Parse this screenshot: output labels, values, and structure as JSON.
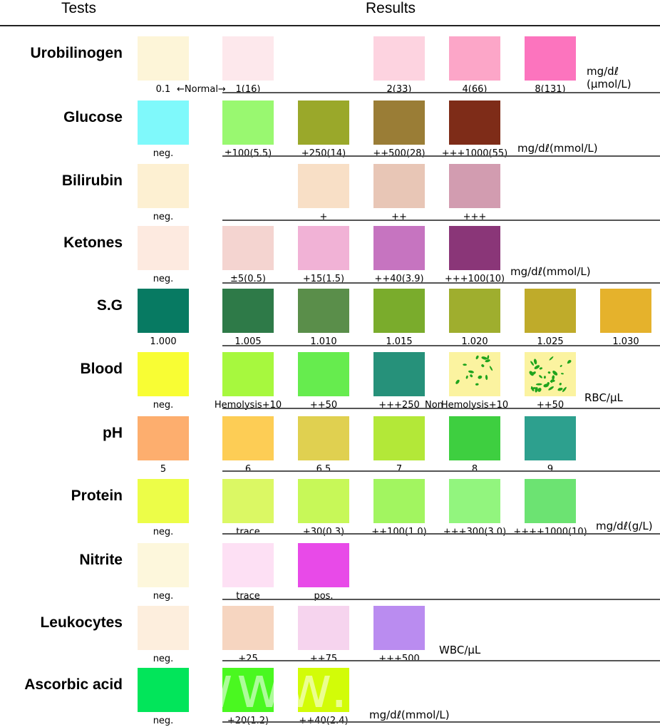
{
  "header": {
    "tests": "Tests",
    "results": "Results"
  },
  "rows": [
    {
      "name": "Urobilinogen",
      "swatches": [
        {
          "color": "#fdf5d8",
          "label": "0.1"
        },
        {
          "color": "#fde8ec",
          "label": "1(16)"
        },
        {
          "color": "#fdd3e0",
          "label": "2(33)"
        },
        {
          "color": "#fca6c8",
          "label": "4(66)"
        },
        {
          "color": "#fc74be",
          "label": "8(131)"
        }
      ],
      "normal_label": "←Normal→",
      "unit": "mg/dℓ",
      "unit2": "(μmol/L)"
    },
    {
      "name": "Glucose",
      "swatches": [
        {
          "color": "#7ff9fb",
          "label": "neg."
        },
        {
          "color": "#99f870",
          "label": "±100(5.5)"
        },
        {
          "color": "#9aa82a",
          "label": "+250(14)"
        },
        {
          "color": "#9a7d36",
          "label": "++500(28)"
        },
        {
          "color": "#7e2c18",
          "label": "+++1000(55)"
        }
      ],
      "unit": "mg/dℓ(mmol/L)"
    },
    {
      "name": "Bilirubin",
      "swatches": [
        {
          "color": "#fdf0d2",
          "label": "neg."
        },
        {
          "color": "#f8dfc6",
          "label": "+"
        },
        {
          "color": "#e8c6b6",
          "label": "++"
        },
        {
          "color": "#d29cb0",
          "label": "+++"
        }
      ]
    },
    {
      "name": "Ketones",
      "swatches": [
        {
          "color": "#fdeae0",
          "label": "neg."
        },
        {
          "color": "#f4d4d0",
          "label": "±5(0.5)"
        },
        {
          "color": "#f1b2d6",
          "label": "+15(1.5)"
        },
        {
          "color": "#c674c0",
          "label": "++40(3.9)"
        },
        {
          "color": "#8a3678",
          "label": "+++100(10)"
        }
      ],
      "unit": "mg/dℓ(mmol/L)"
    },
    {
      "name": "S.G",
      "swatches": [
        {
          "color": "#077a62",
          "label": "1.000"
        },
        {
          "color": "#2e7a48",
          "label": "1.005"
        },
        {
          "color": "#5a8e4a",
          "label": "1.010"
        },
        {
          "color": "#7aac2c",
          "label": "1.015"
        },
        {
          "color": "#9fae2e",
          "label": "1.020"
        },
        {
          "color": "#bfab2a",
          "label": "1.025"
        },
        {
          "color": "#e5b22c",
          "label": "1.030"
        }
      ]
    },
    {
      "name": "Blood",
      "swatches": [
        {
          "color": "#f8fd34",
          "label": "neg."
        },
        {
          "color": "#a7f83e",
          "label": "Hemolysis+10"
        },
        {
          "color": "#66ec4e",
          "label": "++50"
        },
        {
          "color": "#26917a",
          "label": "+++250"
        },
        {
          "color": "#fbf3a0",
          "label": "Hemolysis+10"
        },
        {
          "color": "#fbf3a0",
          "label": "++50"
        }
      ],
      "non_label": "Non",
      "unit": "RBC/μL"
    },
    {
      "name": "pH",
      "swatches": [
        {
          "color": "#fdae6e",
          "label": "5"
        },
        {
          "color": "#fdcd55",
          "label": "6"
        },
        {
          "color": "#e0d050",
          "label": "6.5"
        },
        {
          "color": "#b3e838",
          "label": "7"
        },
        {
          "color": "#3ecf40",
          "label": "8"
        },
        {
          "color": "#2da08e",
          "label": "9"
        }
      ]
    },
    {
      "name": "Protein",
      "swatches": [
        {
          "color": "#ecfd48",
          "label": "neg."
        },
        {
          "color": "#dbf864",
          "label": "trace"
        },
        {
          "color": "#c7f858",
          "label": "+30(0.3)"
        },
        {
          "color": "#a2f560",
          "label": "++100(1.0)"
        },
        {
          "color": "#92f57e",
          "label": "+++300(3.0)"
        },
        {
          "color": "#6ce372",
          "label": "++++1000(10)"
        }
      ],
      "unit": "mg/dℓ(g/L)"
    },
    {
      "name": "Nitrite",
      "swatches": [
        {
          "color": "#fdf7dc",
          "label": "neg."
        },
        {
          "color": "#fde0f4",
          "label": "trace"
        },
        {
          "color": "#e84ae8",
          "label": "pos."
        }
      ]
    },
    {
      "name": "Leukocytes",
      "swatches": [
        {
          "color": "#fdeedd",
          "label": "neg."
        },
        {
          "color": "#f6d5c0",
          "label": "+25"
        },
        {
          "color": "#f6d4ee",
          "label": "++75"
        },
        {
          "color": "#ba8cf0",
          "label": "+++500"
        }
      ],
      "unit": "WBC/μL"
    },
    {
      "name": "Ascorbic acid",
      "swatches": [
        {
          "color": "#02e55a",
          "label": "neg."
        },
        {
          "color": "#4af820",
          "label": "+20(1.2)"
        },
        {
          "color": "#d2fc08",
          "label": "++40(2.4)"
        }
      ],
      "unit": "mg/dℓ(mmol/L)"
    }
  ],
  "watermark": "www.       .com"
}
